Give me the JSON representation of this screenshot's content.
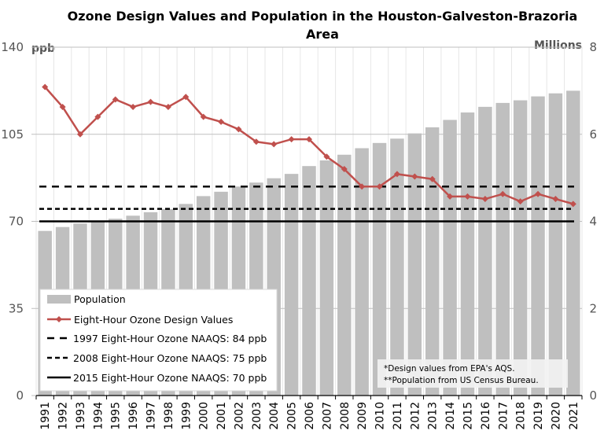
{
  "chart_data": {
    "type": "bar+line",
    "title_lines": [
      "Ozone Design Values and Population in the Houston-Galveston-Brazoria",
      "Area"
    ],
    "left_axis": {
      "unit_label": "ppb",
      "range": [
        0,
        140
      ],
      "ticks": [
        "0",
        "35",
        "70",
        "105",
        "140"
      ]
    },
    "right_axis": {
      "unit_label": "Millions",
      "range": [
        0,
        8
      ],
      "ticks": [
        "0",
        "2",
        "4",
        "6",
        "8"
      ]
    },
    "categories": [
      "1991",
      "1992",
      "1993",
      "1994",
      "1995",
      "1996",
      "1997",
      "1998",
      "1999",
      "2000",
      "2001",
      "2002",
      "2003",
      "2004",
      "2005",
      "2006",
      "2007",
      "2008",
      "2009",
      "2010",
      "2011",
      "2012",
      "2013",
      "2014",
      "2015",
      "2016",
      "2017",
      "2018",
      "2019",
      "2020",
      "2021"
    ],
    "series": [
      {
        "name": "Population",
        "type": "bar",
        "axis": "right",
        "color": "#bfbfbf",
        "values": [
          3.78,
          3.87,
          3.95,
          4.01,
          4.06,
          4.13,
          4.21,
          4.28,
          4.4,
          4.58,
          4.68,
          4.8,
          4.89,
          4.99,
          5.09,
          5.27,
          5.4,
          5.53,
          5.68,
          5.8,
          5.9,
          6.02,
          6.16,
          6.33,
          6.5,
          6.63,
          6.72,
          6.78,
          6.87,
          6.94,
          7.0
        ]
      },
      {
        "name": "Eight-Hour Ozone Design Values",
        "type": "line",
        "axis": "left",
        "color": "#c0504d",
        "values": [
          124,
          116,
          105,
          112,
          119,
          116,
          118,
          116,
          120,
          112,
          110,
          107,
          102,
          101,
          103,
          103,
          96,
          91,
          84,
          84,
          89,
          88,
          87,
          80,
          80,
          79,
          81,
          78,
          81,
          79,
          77
        ]
      },
      {
        "name": "1997 Eight-Hour Ozone NAAQS: 84 ppb",
        "type": "hline",
        "value": 84,
        "style": "long-dash",
        "color": "#000000"
      },
      {
        "name": "2008 Eight-Hour Ozone NAAQS: 75 ppb",
        "type": "hline",
        "value": 75,
        "style": "short-dash",
        "color": "#000000"
      },
      {
        "name": "2015 Eight-Hour Ozone NAAQS: 70 ppb",
        "type": "hline",
        "value": 70,
        "style": "solid",
        "color": "#000000"
      }
    ],
    "legend_position": "bottom-left",
    "grid": "horizontal major + vertical category lines",
    "notes": [
      "*Design values from EPA's AQS.",
      "**Population from US Census Bureau."
    ]
  }
}
